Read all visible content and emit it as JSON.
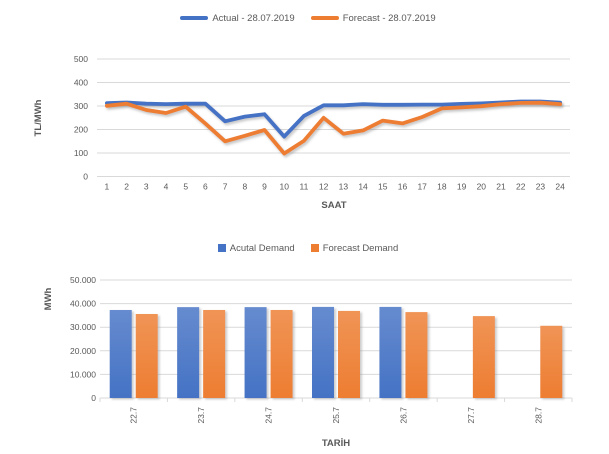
{
  "chart_data": [
    {
      "type": "line",
      "x": [
        1,
        2,
        3,
        4,
        5,
        6,
        7,
        8,
        9,
        10,
        11,
        12,
        13,
        14,
        15,
        16,
        17,
        18,
        19,
        20,
        21,
        22,
        23,
        24
      ],
      "series": [
        {
          "name": "Actual - 28.07.2019",
          "color": "#4472C4",
          "values": [
            312,
            315,
            310,
            308,
            310,
            310,
            235,
            255,
            265,
            170,
            258,
            303,
            303,
            308,
            305,
            305,
            306,
            306,
            309,
            311,
            315,
            319,
            319,
            314
          ]
        },
        {
          "name": "Forecast - 28.07.2019",
          "color": "#ED7D31",
          "values": [
            301,
            310,
            283,
            270,
            297,
            225,
            150,
            173,
            198,
            98,
            152,
            250,
            182,
            196,
            238,
            226,
            253,
            290,
            294,
            299,
            308,
            313,
            314,
            308
          ]
        }
      ],
      "xlabel": "SAAT",
      "ylabel": "TL/MWh",
      "ylim": [
        0,
        500
      ],
      "ytick_step": 100,
      "yticks": [
        "0",
        "100",
        "200",
        "300",
        "400",
        "500"
      ],
      "legend_position": "top",
      "grid": true
    },
    {
      "type": "bar",
      "categories": [
        "22.7",
        "23.7",
        "24.7",
        "25.7",
        "26.7",
        "27.7",
        "28.7"
      ],
      "series": [
        {
          "name": "Acutal Demand",
          "color": "#4472C4",
          "values": [
            37300,
            38500,
            38500,
            38600,
            38600,
            null,
            null
          ]
        },
        {
          "name": "Forecast Demand",
          "color": "#ED7D31",
          "values": [
            35600,
            37300,
            37300,
            36900,
            36400,
            34700,
            30600
          ]
        }
      ],
      "xlabel": "TARİH",
      "ylabel": "MWh",
      "ylim": [
        0,
        50000
      ],
      "ytick_step": 10000,
      "yticks": [
        "0",
        "10.000",
        "20.000",
        "30.000",
        "40.000",
        "50.000"
      ],
      "legend_position": "top",
      "grid": true
    }
  ],
  "style": {
    "grid_color": "#D9D9D9",
    "tick_text_color": "#595959",
    "axis_title_color": "#595959"
  }
}
